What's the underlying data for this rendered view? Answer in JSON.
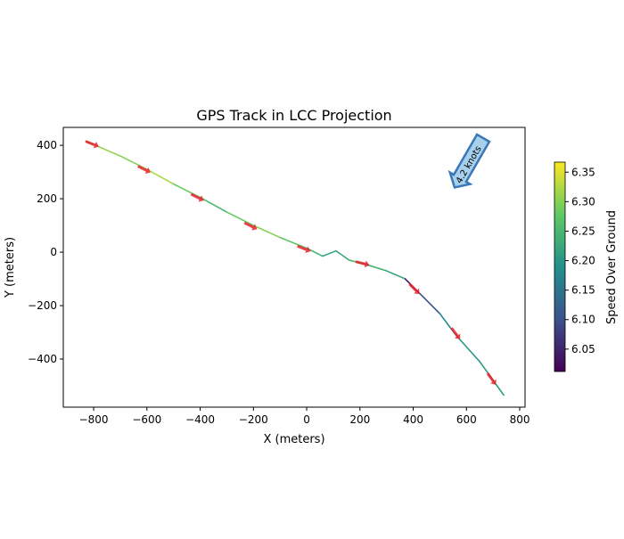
{
  "chart_data": {
    "type": "line",
    "title": "GPS Track in LCC Projection",
    "xlabel": "X (meters)",
    "ylabel": "Y (meters)",
    "xlim": [
      -914,
      820
    ],
    "ylim": [
      -580,
      467
    ],
    "xticks": [
      -800,
      -600,
      -400,
      -200,
      0,
      200,
      400,
      600,
      800
    ],
    "yticks": [
      -400,
      -200,
      0,
      200,
      400
    ],
    "track": {
      "x": [
        -830,
        -800,
        -700,
        -600,
        -500,
        -400,
        -300,
        -200,
        -100,
        0,
        60,
        110,
        160,
        220,
        300,
        370,
        420,
        500,
        560,
        650,
        740
      ],
      "y": [
        415,
        403,
        360,
        310,
        255,
        205,
        150,
        100,
        55,
        15,
        -15,
        5,
        -30,
        -45,
        -70,
        -100,
        -150,
        -230,
        -310,
        -410,
        -535
      ],
      "speed": [
        6.3,
        6.31,
        6.3,
        6.32,
        6.28,
        6.25,
        6.28,
        6.3,
        6.27,
        6.24,
        6.22,
        6.23,
        6.26,
        6.24,
        6.22,
        6.04,
        6.1,
        6.18,
        6.2,
        6.21
      ]
    },
    "heading_arrows": {
      "x": [
        -805,
        -610,
        -410,
        -210,
        -10,
        210,
        405,
        560,
        695
      ],
      "y": [
        405,
        310,
        205,
        98,
        13,
        -42,
        -138,
        -305,
        -475
      ]
    },
    "wind_annotation": {
      "label": "4.2 knots"
    },
    "colorbar": {
      "label": "Speed Over Ground",
      "range": [
        6.012,
        6.367
      ],
      "ticks": [
        "6.05",
        "6.10",
        "6.15",
        "6.20",
        "6.25",
        "6.30",
        "6.35"
      ],
      "tick_values": [
        6.05,
        6.1,
        6.15,
        6.2,
        6.25,
        6.3,
        6.35
      ]
    },
    "colors": {
      "arrow": "#e8202a",
      "wind_fill": "#a6d0ec",
      "wind_edge": "#3a78b6"
    }
  }
}
